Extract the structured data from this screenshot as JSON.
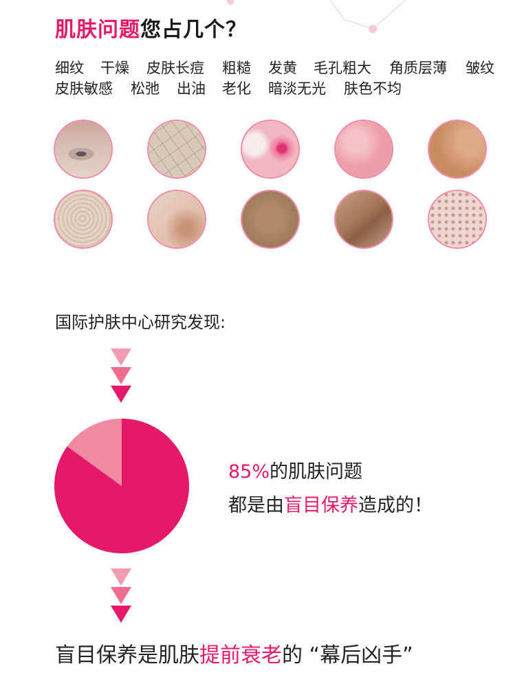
{
  "title": {
    "highlight": "肌肤问题",
    "rest": "您占几个？"
  },
  "tags": {
    "row1": [
      "细纹",
      "干燥",
      "皮肤长痘",
      "粗糙",
      "发黄",
      "毛孔粗大",
      "角质层薄",
      "皱纹"
    ],
    "row2": [
      "皮肤敏感",
      "松弛",
      "出油",
      "老化",
      "暗淡无光",
      "肤色不均"
    ]
  },
  "skin_images": [
    "eye-wrinkle",
    "dry-cracked",
    "acne",
    "rough-red",
    "yellow",
    "fine-texture",
    "sensitive",
    "loose",
    "fold-wrinkle",
    "large-pores"
  ],
  "study_label": "国际护肤中心研究发现:",
  "fact": {
    "line1_percent": "85%",
    "line1_rest": "的肌肤问题",
    "line2_pre": "都是由",
    "line2_highlight": "盲目保养",
    "line2_post": "造成的！"
  },
  "chart_data": {
    "type": "pie",
    "values": [
      85,
      15
    ],
    "colors": [
      "#e5196a",
      "#f08aa3"
    ]
  },
  "bottom": {
    "pre": "盲目保养是肌肤",
    "highlight": "提前衰老",
    "post": "的 “幕后凶手”"
  },
  "colors": {
    "accent": "#e5186a",
    "light_accent": "#f08aa3",
    "circle_border": "#ee8aa6"
  }
}
